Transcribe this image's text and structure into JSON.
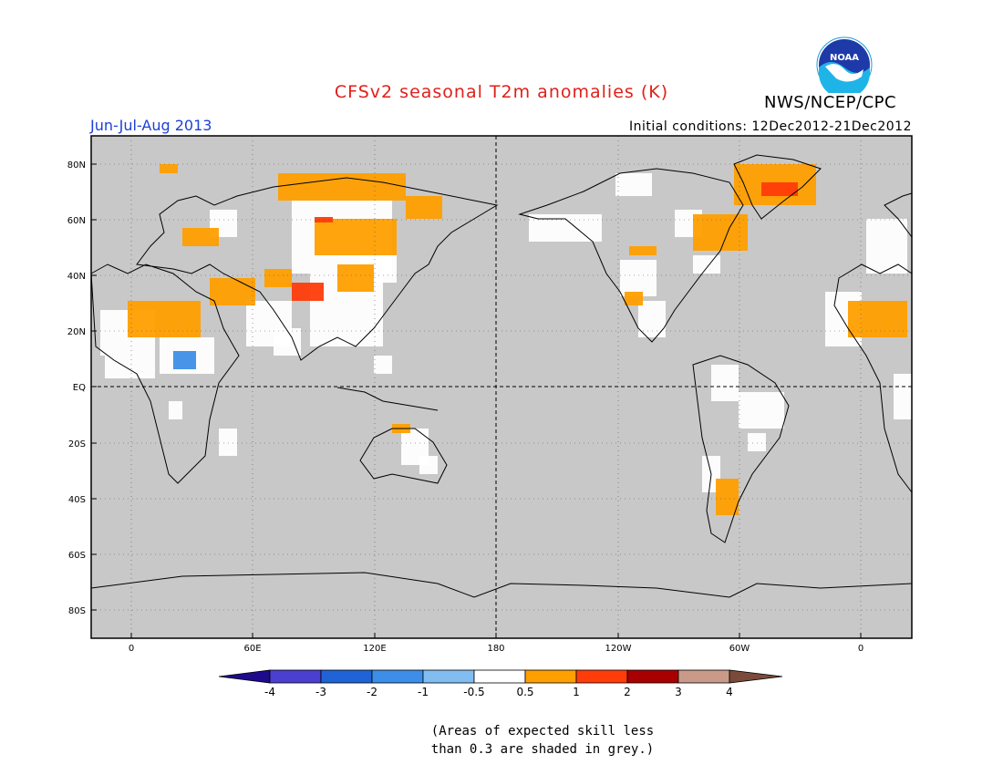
{
  "title": "CFSv2 seasonal T2m anomalies (K)",
  "season": "Jun-Jul-Aug 2013",
  "initial_conditions": "Initial conditions: 12Dec2012-21Dec2012",
  "agency": "NWS/NCEP/CPC",
  "logo_text": "NOAA",
  "lat_labels": [
    "80N",
    "60N",
    "40N",
    "20N",
    "EQ",
    "20S",
    "40S",
    "60S",
    "80S"
  ],
  "lon_labels": [
    "0",
    "60E",
    "120E",
    "180",
    "120W",
    "60W",
    "0"
  ],
  "colorbar": {
    "labels": [
      "-4",
      "-3",
      "-2",
      "-1",
      "-0.5",
      "0.5",
      "1",
      "2",
      "3",
      "4"
    ],
    "colors": [
      "#1e0a8c",
      "#4b3fd0",
      "#1f63d6",
      "#3d8ee8",
      "#82bdf2",
      "#ffffff",
      "#ff9f00",
      "#ff3c0a",
      "#a80000",
      "#c99a8a",
      "#7a4a3a"
    ]
  },
  "grey_color": "#c8c8c8",
  "note_lines": [
    "(Areas of expected skill less",
    "than 0.3 are shaded in grey.)"
  ]
}
